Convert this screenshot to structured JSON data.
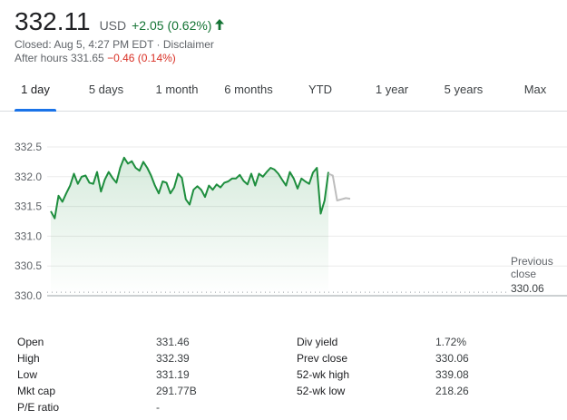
{
  "quote": {
    "price": "332.11",
    "currency": "USD",
    "change": "+2.05 (0.62%)",
    "closed_line": "Closed: Aug 5, 4:27 PM EDT · Disclaimer",
    "after_hours_label": "After hours 331.65",
    "after_hours_change": "−0.46 (0.14%)",
    "colors": {
      "up": "#137333",
      "down": "#d93025",
      "line": "#1e8e3e",
      "after_hours_line": "#bdbdbd"
    }
  },
  "tabs": [
    {
      "label": "1 day",
      "active": true
    },
    {
      "label": "5 days"
    },
    {
      "label": "1 month"
    },
    {
      "label": "6 months"
    },
    {
      "label": "YTD"
    },
    {
      "label": "1 year"
    },
    {
      "label": "5 years"
    },
    {
      "label": "Max"
    }
  ],
  "chart_data": {
    "type": "line",
    "title": "",
    "xlabel": "",
    "ylabel": "",
    "yticks": [
      "332.5",
      "332.0",
      "331.5",
      "331.0",
      "330.5",
      "330.0"
    ],
    "ylim": [
      330.0,
      332.5
    ],
    "reference_line": {
      "label": "Previous close",
      "value_label": "330.06",
      "value": 330.06
    },
    "series": [
      {
        "values": [
          331.42,
          331.3,
          331.68,
          331.58,
          331.72,
          331.85,
          332.05,
          331.88,
          332.0,
          332.02,
          331.9,
          331.88,
          332.08,
          331.75,
          331.95,
          332.08,
          331.98,
          331.9,
          332.15,
          332.32,
          332.22,
          332.26,
          332.15,
          332.1,
          332.25,
          332.15,
          332.02,
          331.85,
          331.72,
          331.92,
          331.9,
          331.72,
          331.82,
          332.05,
          331.98,
          331.62,
          331.53,
          331.78,
          331.84,
          331.78,
          331.66,
          331.85,
          331.78,
          331.87,
          331.82,
          331.9,
          331.92,
          331.97,
          331.97,
          332.03,
          331.93,
          331.87,
          332.05,
          331.85,
          332.05,
          332.0,
          332.08,
          332.15,
          332.12,
          332.05,
          331.95,
          331.85,
          332.08,
          331.97,
          331.8,
          331.97,
          331.92,
          331.88,
          332.07,
          332.15,
          331.38,
          331.6,
          332.08
        ]
      },
      {
        "values": [
          332.05,
          332.02,
          331.6,
          331.62,
          331.64,
          331.63
        ]
      }
    ]
  },
  "stats": {
    "left": [
      {
        "label": "Open",
        "value": "331.46"
      },
      {
        "label": "High",
        "value": "332.39"
      },
      {
        "label": "Low",
        "value": "331.19"
      },
      {
        "label": "Mkt cap",
        "value": "291.77B"
      },
      {
        "label": "P/E ratio",
        "value": "-"
      }
    ],
    "right": [
      {
        "label": "Div yield",
        "value": "1.72%"
      },
      {
        "label": "Prev close",
        "value": "330.06"
      },
      {
        "label": "52-wk high",
        "value": "339.08"
      },
      {
        "label": "52-wk low",
        "value": "218.26"
      }
    ]
  }
}
